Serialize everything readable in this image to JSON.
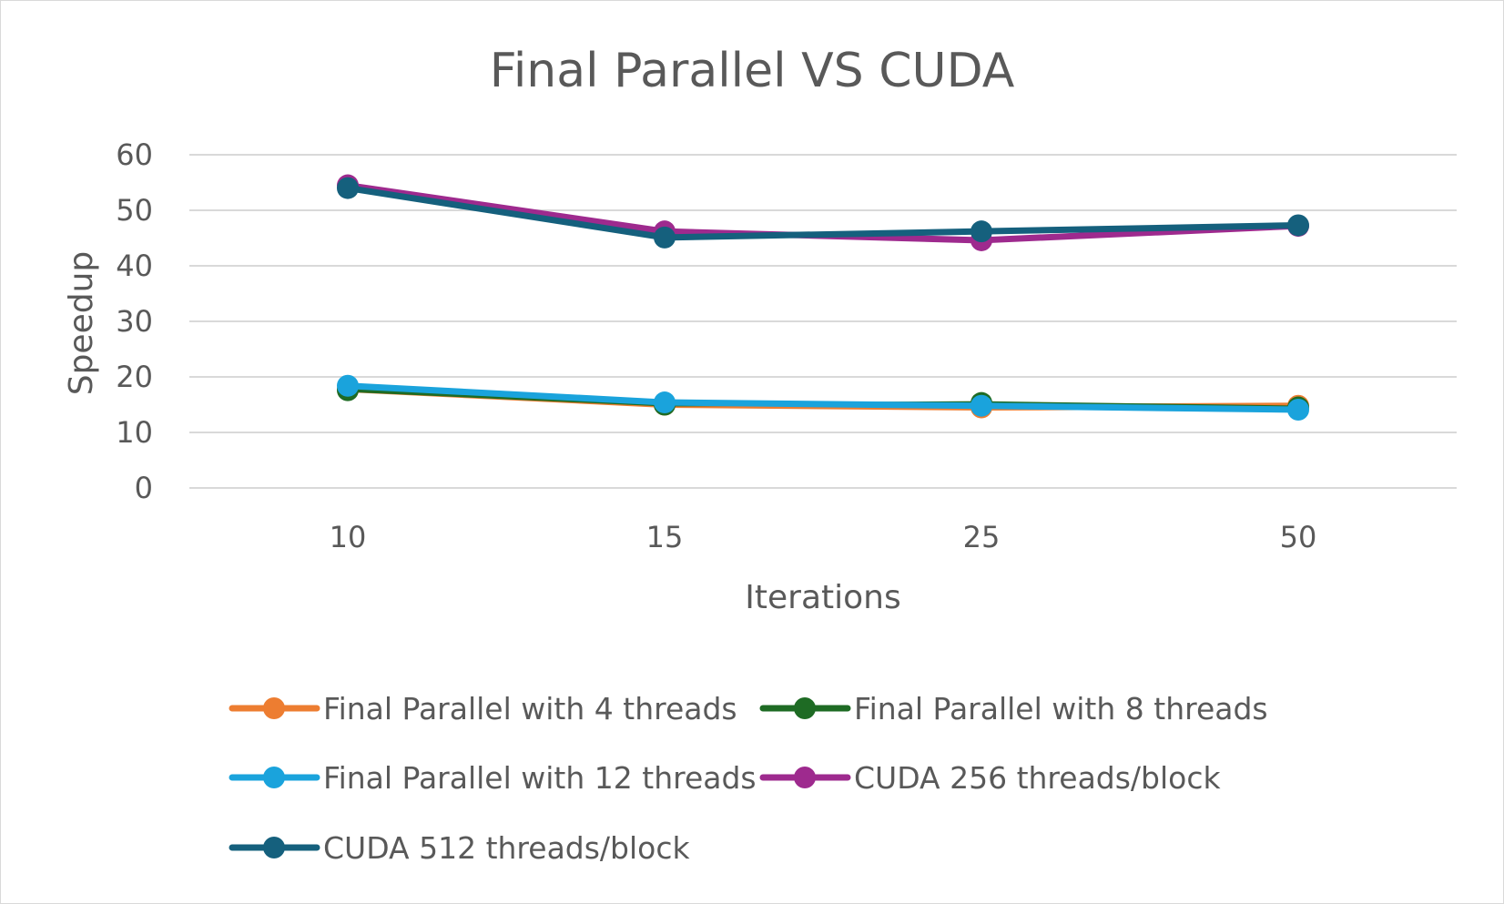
{
  "chart_data": {
    "type": "line",
    "title": "Final Parallel VS CUDA",
    "xlabel": "Iterations",
    "ylabel": "Speedup",
    "categories": [
      "10",
      "15",
      "25",
      "50"
    ],
    "yticks": [
      "0",
      "10",
      "20",
      "30",
      "40",
      "50",
      "60"
    ],
    "ylim": [
      0,
      60
    ],
    "grid": true,
    "legend_position": "bottom",
    "series": [
      {
        "name": "Final Parallel with 4 threads",
        "color": "#ED7D31",
        "values": [
          17.8,
          15.0,
          14.5,
          14.8
        ]
      },
      {
        "name": "Final Parallel with 8 threads",
        "color": "#1E6B24",
        "values": [
          17.6,
          15.0,
          15.3,
          14.5
        ]
      },
      {
        "name": "Final Parallel with 12 threads",
        "color": "#1AA3DC",
        "values": [
          18.4,
          15.4,
          14.8,
          14.1
        ]
      },
      {
        "name": "CUDA  256 threads/block",
        "color": "#9E2A8E",
        "values": [
          54.5,
          46.2,
          44.6,
          47.2
        ]
      },
      {
        "name": "CUDA 512 threads/block",
        "color": "#15607D",
        "values": [
          54.0,
          45.1,
          46.2,
          47.3
        ]
      }
    ]
  }
}
